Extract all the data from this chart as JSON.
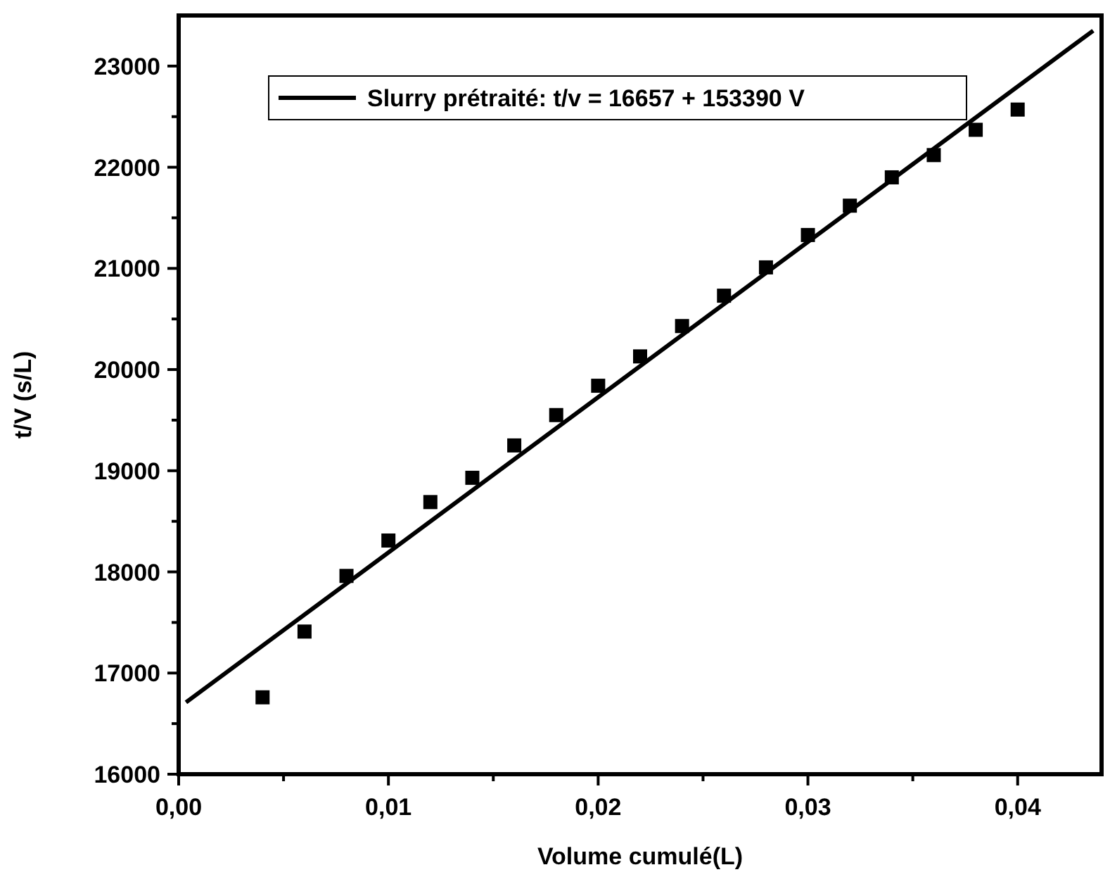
{
  "chart_data": {
    "type": "scatter",
    "xlabel": "Volume cumulé(L)",
    "ylabel": "t/V (s/L)",
    "xlim": [
      0,
      0.044
    ],
    "ylim": [
      16000,
      23500
    ],
    "xticks": [
      {
        "value": 0,
        "label": "0,00"
      },
      {
        "value": 0.005,
        "label": null
      },
      {
        "value": 0.01,
        "label": "0,01"
      },
      {
        "value": 0.015,
        "label": null
      },
      {
        "value": 0.02,
        "label": "0,02"
      },
      {
        "value": 0.025,
        "label": null
      },
      {
        "value": 0.03,
        "label": "0,03"
      },
      {
        "value": 0.035,
        "label": null
      },
      {
        "value": 0.04,
        "label": "0,04"
      }
    ],
    "yticks": [
      16000,
      {
        "value": 16500,
        "label": null
      },
      17000,
      {
        "value": 17500,
        "label": null
      },
      18000,
      {
        "value": 18500,
        "label": null
      },
      19000,
      {
        "value": 19500,
        "label": null
      },
      20000,
      {
        "value": 20500,
        "label": null
      },
      21000,
      {
        "value": 21500,
        "label": null
      },
      22000,
      {
        "value": 22500,
        "label": null
      },
      23000
    ],
    "grid": false,
    "legend": "top",
    "series": [
      {
        "marker": "square",
        "color": "#000000",
        "x": [
          0.004,
          0.006,
          0.008,
          0.01,
          0.012,
          0.014,
          0.016,
          0.018,
          0.02,
          0.022,
          0.024,
          0.026,
          0.028,
          0.03,
          0.032,
          0.034,
          0.036,
          0.038,
          0.04
        ],
        "values": [
          16760,
          17410,
          17960,
          18310,
          18690,
          18930,
          19250,
          19550,
          19840,
          20130,
          20430,
          20730,
          21010,
          21330,
          21620,
          21900,
          22120,
          22370,
          22570
        ]
      },
      {
        "type": "line",
        "name": "Slurry prétraité: t/v = 16657 + 153390 V",
        "color": "#000000",
        "marker": "none",
        "line_style": "solid",
        "x": [
          0.00035,
          0.0436
        ],
        "values": [
          16710,
          23350
        ]
      }
    ]
  }
}
